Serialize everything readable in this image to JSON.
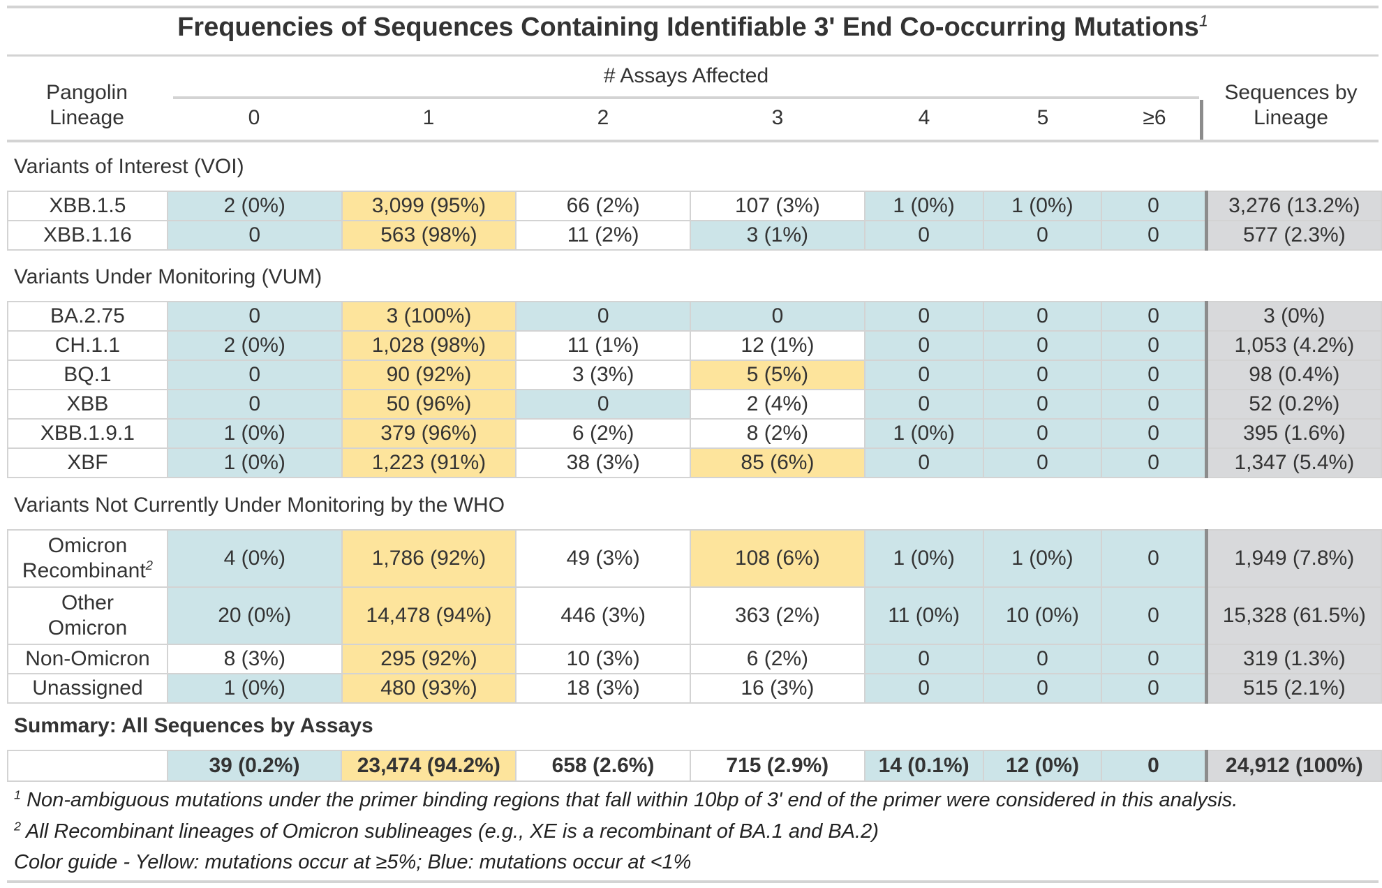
{
  "title": "Frequencies of Sequences Containing Identifiable 3' End Co-occurring Mutations",
  "title_footnote": "1",
  "header": {
    "lineage_label_line1": "Pangolin",
    "lineage_label_line2": "Lineage",
    "spanner": "# Assays Affected",
    "columns": [
      "0",
      "1",
      "2",
      "3",
      "4",
      "5",
      "≥6"
    ],
    "total_label_line1": "Sequences by",
    "total_label_line2": "Lineage"
  },
  "colors": {
    "yellow": "#fde49c",
    "blue": "#cce4e8",
    "total_gray": "#d8d9db",
    "rule": "#d3d3d3"
  },
  "groups": [
    {
      "label": "Variants of Interest (VOI)",
      "rows": [
        {
          "lineage": "XBB.1.5",
          "cells": [
            "2 (0%)",
            "3,099 (95%)",
            "66 (2%)",
            "107 (3%)",
            "1 (0%)",
            "1 (0%)",
            "0"
          ],
          "colors": [
            "blue",
            "yellow",
            "white",
            "white",
            "blue",
            "blue",
            "blue"
          ],
          "total": "3,276 (13.2%)"
        },
        {
          "lineage": "XBB.1.16",
          "cells": [
            "0",
            "563 (98%)",
            "11 (2%)",
            "3 (1%)",
            "0",
            "0",
            "0"
          ],
          "colors": [
            "blue",
            "yellow",
            "white",
            "blue",
            "blue",
            "blue",
            "blue"
          ],
          "total": "577 (2.3%)"
        }
      ]
    },
    {
      "label": "Variants Under Monitoring (VUM)",
      "rows": [
        {
          "lineage": "BA.2.75",
          "cells": [
            "0",
            "3 (100%)",
            "0",
            "0",
            "0",
            "0",
            "0"
          ],
          "colors": [
            "blue",
            "yellow",
            "blue",
            "blue",
            "blue",
            "blue",
            "blue"
          ],
          "total": "3 (0%)"
        },
        {
          "lineage": "CH.1.1",
          "cells": [
            "2 (0%)",
            "1,028 (98%)",
            "11 (1%)",
            "12 (1%)",
            "0",
            "0",
            "0"
          ],
          "colors": [
            "blue",
            "yellow",
            "white",
            "white",
            "blue",
            "blue",
            "blue"
          ],
          "total": "1,053 (4.2%)"
        },
        {
          "lineage": "BQ.1",
          "cells": [
            "0",
            "90 (92%)",
            "3 (3%)",
            "5 (5%)",
            "0",
            "0",
            "0"
          ],
          "colors": [
            "blue",
            "yellow",
            "white",
            "yellow",
            "blue",
            "blue",
            "blue"
          ],
          "total": "98 (0.4%)"
        },
        {
          "lineage": "XBB",
          "cells": [
            "0",
            "50 (96%)",
            "0",
            "2 (4%)",
            "0",
            "0",
            "0"
          ],
          "colors": [
            "blue",
            "yellow",
            "blue",
            "white",
            "blue",
            "blue",
            "blue"
          ],
          "total": "52 (0.2%)"
        },
        {
          "lineage": "XBB.1.9.1",
          "cells": [
            "1 (0%)",
            "379 (96%)",
            "6 (2%)",
            "8 (2%)",
            "1 (0%)",
            "0",
            "0"
          ],
          "colors": [
            "blue",
            "yellow",
            "white",
            "white",
            "blue",
            "blue",
            "blue"
          ],
          "total": "395 (1.6%)"
        },
        {
          "lineage": "XBF",
          "cells": [
            "1 (0%)",
            "1,223 (91%)",
            "38 (3%)",
            "85 (6%)",
            "0",
            "0",
            "0"
          ],
          "colors": [
            "blue",
            "yellow",
            "white",
            "yellow",
            "blue",
            "blue",
            "blue"
          ],
          "total": "1,347 (5.4%)"
        }
      ]
    },
    {
      "label": "Variants Not Currently Under Monitoring by the WHO",
      "rows": [
        {
          "lineage": "Omicron",
          "lineage2": "Recombinant",
          "lineage_sup": "2",
          "cells": [
            "4 (0%)",
            "1,786 (92%)",
            "49 (3%)",
            "108 (6%)",
            "1 (0%)",
            "1 (0%)",
            "0"
          ],
          "colors": [
            "blue",
            "yellow",
            "white",
            "yellow",
            "blue",
            "blue",
            "blue"
          ],
          "total": "1,949 (7.8%)"
        },
        {
          "lineage": "Other",
          "lineage2": "Omicron",
          "cells": [
            "20 (0%)",
            "14,478 (94%)",
            "446 (3%)",
            "363 (2%)",
            "11 (0%)",
            "10 (0%)",
            "0"
          ],
          "colors": [
            "blue",
            "yellow",
            "white",
            "white",
            "blue",
            "blue",
            "blue"
          ],
          "total": "15,328 (61.5%)"
        },
        {
          "lineage": "Non-Omicron",
          "cells": [
            "8 (3%)",
            "295 (92%)",
            "10 (3%)",
            "6 (2%)",
            "0",
            "0",
            "0"
          ],
          "colors": [
            "white",
            "yellow",
            "white",
            "white",
            "blue",
            "blue",
            "blue"
          ],
          "total": "319 (1.3%)"
        },
        {
          "lineage": "Unassigned",
          "cells": [
            "1 (0%)",
            "480 (93%)",
            "18 (3%)",
            "16 (3%)",
            "0",
            "0",
            "0"
          ],
          "colors": [
            "blue",
            "yellow",
            "white",
            "white",
            "blue",
            "blue",
            "blue"
          ],
          "total": "515 (2.1%)"
        }
      ]
    },
    {
      "label": "Summary: All Sequences by Assays",
      "bold": true,
      "rows": [
        {
          "lineage": "",
          "cells": [
            "39 (0.2%)",
            "23,474 (94.2%)",
            "658 (2.6%)",
            "715 (2.9%)",
            "14 (0.1%)",
            "12 (0%)",
            "0"
          ],
          "colors": [
            "blue",
            "yellow",
            "white",
            "white",
            "blue",
            "blue",
            "blue"
          ],
          "total": "24,912 (100%)"
        }
      ]
    }
  ],
  "footnotes": [
    {
      "sup": "1",
      "text": "Non-ambiguous mutations under the primer binding regions that fall within 10bp of 3' end of the primer were considered in this analysis."
    },
    {
      "sup": "2",
      "text": "All Recombinant lineages of Omicron sublineages (e.g., XE is a recombinant of BA.1 and BA.2)"
    },
    {
      "sup": "",
      "text": "Color guide - Yellow: mutations occur at ≥5%; Blue: mutations occur at <1%"
    }
  ]
}
